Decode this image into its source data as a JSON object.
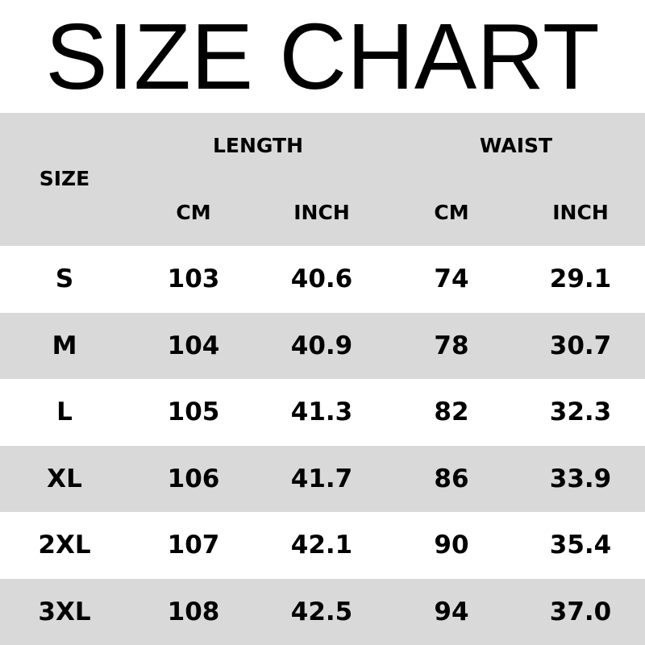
{
  "title": "SIZE CHART",
  "chart_data": {
    "type": "table",
    "header_groups": [
      "LENGTH",
      "WAIST"
    ],
    "size_header": "SIZE",
    "unit_headers": [
      "CM",
      "INCH",
      "CM",
      "INCH"
    ],
    "rows": [
      [
        "S",
        "103",
        "40.6",
        "74",
        "29.1"
      ],
      [
        "M",
        "104",
        "40.9",
        "78",
        "30.7"
      ],
      [
        "L",
        "105",
        "41.3",
        "82",
        "32.3"
      ],
      [
        "XL",
        "106",
        "41.7",
        "86",
        "33.9"
      ],
      [
        "2XL",
        "107",
        "42.1",
        "90",
        "35.4"
      ],
      [
        "3XL",
        "108",
        "42.5",
        "94",
        "37.0"
      ]
    ]
  },
  "colors": {
    "band": "#d9d9d9",
    "text": "#000000"
  }
}
